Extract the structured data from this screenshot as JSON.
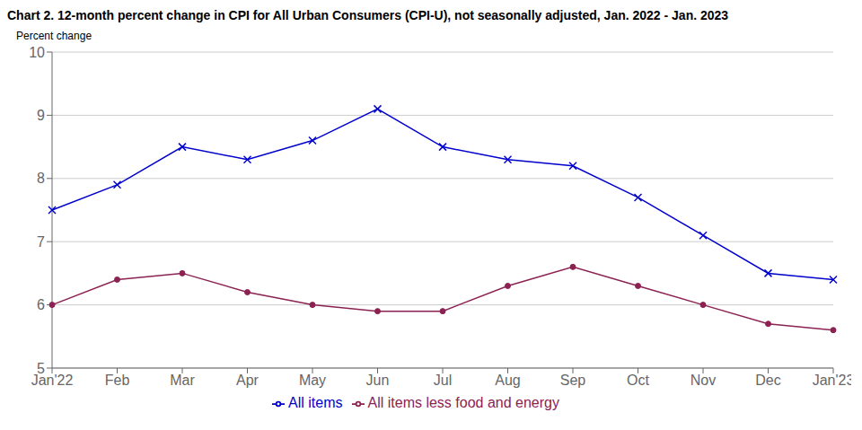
{
  "chart_data": {
    "type": "line",
    "title": "Chart 2. 12-month percent change in CPI for All Urban Consumers (CPI-U), not seasonally adjusted, Jan. 2022 - Jan. 2023",
    "ylabel": "Percent change",
    "categories": [
      "Jan'22",
      "Feb",
      "Mar",
      "Apr",
      "May",
      "Jun",
      "Jul",
      "Aug",
      "Sep",
      "Oct",
      "Nov",
      "Dec",
      "Jan'23"
    ],
    "series": [
      {
        "name": "All items",
        "color": "#0000CC",
        "marker": "x",
        "values": [
          7.5,
          7.9,
          8.5,
          8.3,
          8.6,
          9.1,
          8.5,
          8.3,
          8.2,
          7.7,
          7.1,
          6.5,
          6.4
        ]
      },
      {
        "name": "All items less food and energy",
        "color": "#8B2252",
        "marker": "circle",
        "values": [
          6.0,
          6.4,
          6.5,
          6.2,
          6.0,
          5.9,
          5.9,
          6.3,
          6.6,
          6.3,
          6.0,
          5.7,
          5.6
        ]
      }
    ],
    "ylim": [
      5,
      10
    ],
    "yticks": [
      5,
      6,
      7,
      8,
      9,
      10
    ],
    "grid": true,
    "legend": "bottom"
  }
}
